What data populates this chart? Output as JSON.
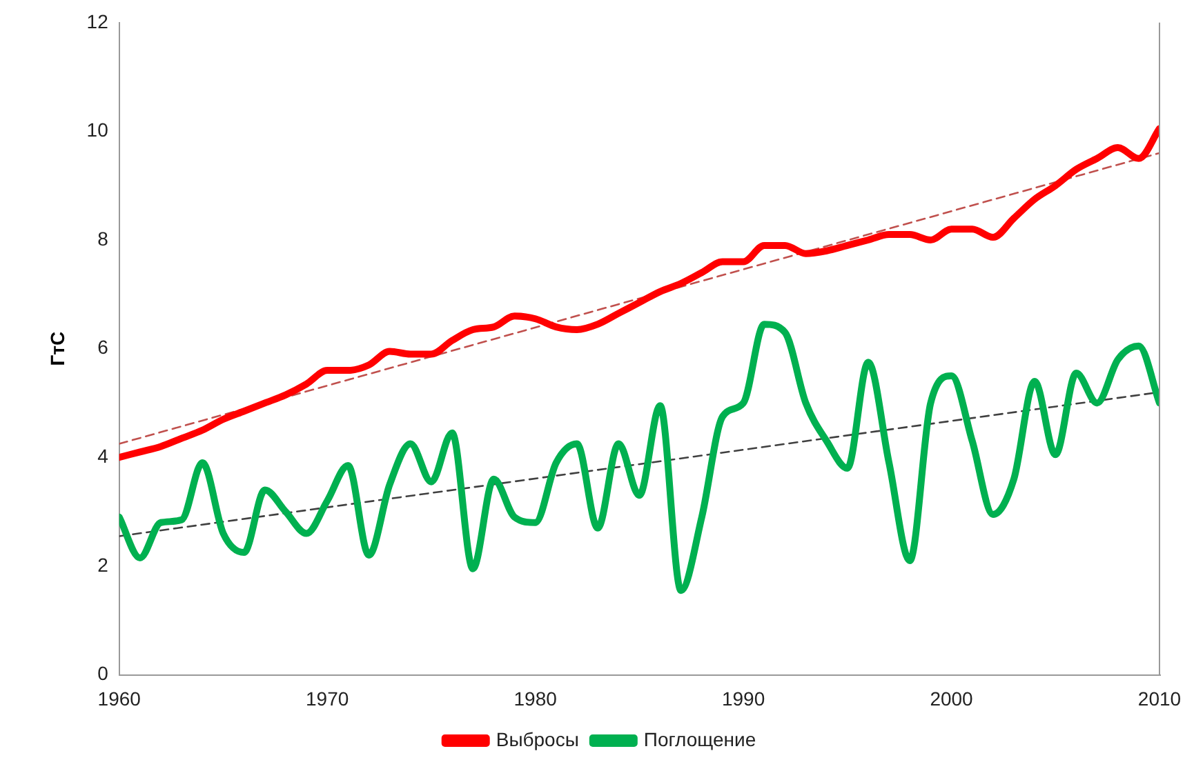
{
  "chart_data": {
    "type": "line",
    "ylabel": "ГтС",
    "x": [
      1960,
      1961,
      1962,
      1963,
      1964,
      1965,
      1966,
      1967,
      1968,
      1969,
      1970,
      1971,
      1972,
      1973,
      1974,
      1975,
      1976,
      1977,
      1978,
      1979,
      1980,
      1981,
      1982,
      1983,
      1984,
      1985,
      1986,
      1987,
      1988,
      1989,
      1990,
      1991,
      1992,
      1993,
      1994,
      1995,
      1996,
      1997,
      1998,
      1999,
      2000,
      2001,
      2002,
      2003,
      2004,
      2005,
      2006,
      2007,
      2008,
      2009,
      2010
    ],
    "xlim": [
      1960,
      2010
    ],
    "xticks": [
      1960,
      1970,
      1980,
      1990,
      2000,
      2010
    ],
    "ylim": [
      0,
      12
    ],
    "yticks": [
      0,
      2,
      4,
      6,
      8,
      10,
      12
    ],
    "grid": false,
    "legend": "bottom",
    "marker": "none",
    "series": [
      {
        "name": "Выбросы",
        "color": "#ff0000",
        "values": [
          4.0,
          4.1,
          4.2,
          4.35,
          4.5,
          4.7,
          4.85,
          5.0,
          5.15,
          5.35,
          5.6,
          5.6,
          5.7,
          5.95,
          5.9,
          5.9,
          6.15,
          6.35,
          6.4,
          6.6,
          6.55,
          6.4,
          6.35,
          6.45,
          6.65,
          6.85,
          7.05,
          7.2,
          7.4,
          7.6,
          7.6,
          7.9,
          7.9,
          7.75,
          7.8,
          7.9,
          8.0,
          8.1,
          8.1,
          8.0,
          8.2,
          8.2,
          8.05,
          8.4,
          8.75,
          9.0,
          9.3,
          9.5,
          9.7,
          9.5,
          10.05
        ]
      },
      {
        "name": "Поглощение",
        "color": "#00b050",
        "values": [
          2.9,
          2.15,
          2.8,
          2.85,
          3.9,
          2.6,
          2.25,
          3.4,
          3.0,
          2.6,
          3.2,
          3.85,
          2.2,
          3.5,
          4.25,
          3.55,
          4.45,
          1.95,
          3.6,
          2.9,
          2.8,
          3.9,
          4.25,
          2.7,
          4.25,
          3.3,
          4.95,
          1.55,
          2.9,
          4.75,
          5.0,
          6.45,
          6.3,
          5.0,
          4.3,
          3.8,
          5.75,
          3.9,
          2.1,
          5.0,
          5.5,
          4.3,
          2.95,
          3.6,
          5.4,
          4.05,
          5.55,
          5.0,
          5.8,
          6.05,
          5.0
        ]
      },
      {
        "type": "line",
        "color": "#c0504d",
        "line_style": "dashed",
        "values": [
          4.25,
          null,
          null,
          null,
          null,
          null,
          null,
          null,
          null,
          null,
          null,
          null,
          null,
          null,
          null,
          null,
          null,
          null,
          null,
          null,
          null,
          null,
          null,
          null,
          null,
          null,
          null,
          null,
          null,
          null,
          null,
          null,
          null,
          null,
          null,
          null,
          null,
          null,
          null,
          null,
          null,
          null,
          null,
          null,
          null,
          null,
          null,
          null,
          null,
          null,
          9.6
        ]
      },
      {
        "type": "line",
        "color": "#404040",
        "line_style": "dashed",
        "values": [
          2.55,
          null,
          null,
          null,
          null,
          null,
          null,
          null,
          null,
          null,
          null,
          null,
          null,
          null,
          null,
          null,
          null,
          null,
          null,
          null,
          null,
          null,
          null,
          null,
          null,
          null,
          null,
          null,
          null,
          null,
          null,
          null,
          null,
          null,
          null,
          null,
          null,
          null,
          null,
          null,
          null,
          null,
          null,
          null,
          null,
          null,
          null,
          null,
          null,
          null,
          5.2
        ]
      }
    ]
  }
}
